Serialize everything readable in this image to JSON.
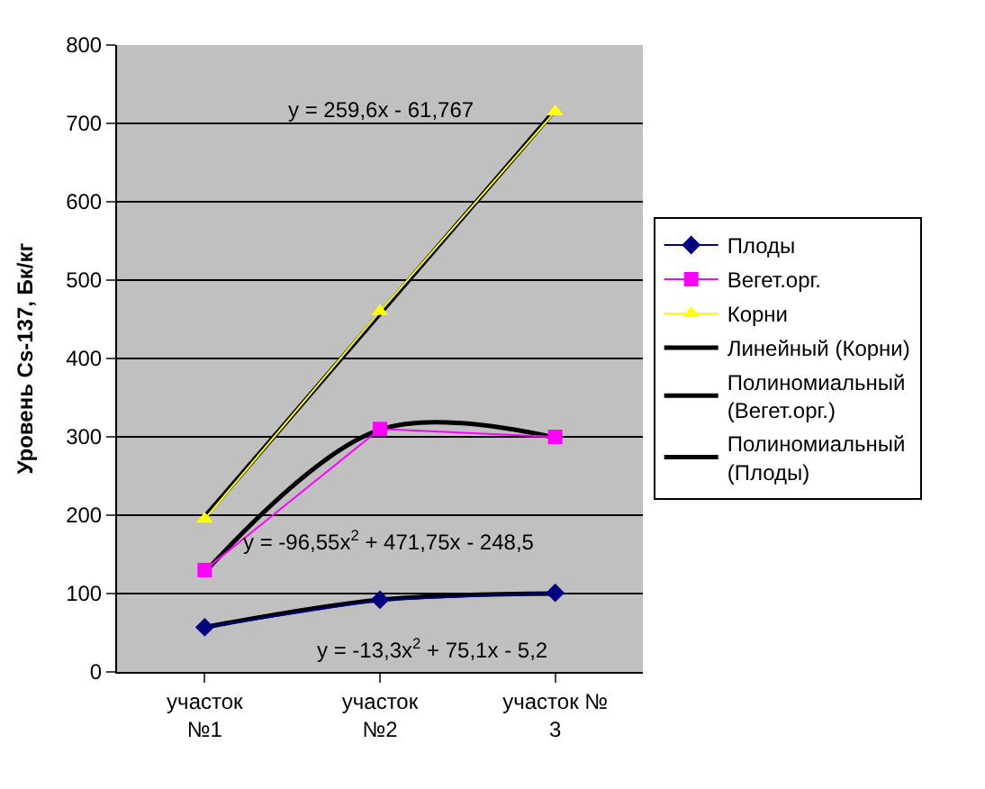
{
  "chart_data": {
    "type": "line",
    "ylabel": "Уровень Cs-137, Бк/кг",
    "categories": [
      "участок №1",
      "участок №2",
      "участок № 3"
    ],
    "series": [
      {
        "name": "Плоды",
        "color": "#000080",
        "marker": "diamond",
        "values": [
          57,
          92,
          101
        ]
      },
      {
        "name": "Вегет.орг.",
        "color": "#ff00ff",
        "marker": "square",
        "values": [
          130,
          310,
          300
        ]
      },
      {
        "name": "Корни",
        "color": "#ffff00",
        "marker": "triangle",
        "values": [
          195,
          460,
          715
        ]
      },
      {
        "name": "Линейный (Корни)",
        "color": "#000000",
        "marker": "none",
        "values": [
          198,
          457,
          717
        ]
      },
      {
        "name": "Полиномиальный (Вегет.орг.)",
        "color": "#000000",
        "marker": "none",
        "values": [
          127,
          309,
          299
        ]
      },
      {
        "name": "Полиномиальный (Плоды)",
        "color": "#000000",
        "marker": "none",
        "values": [
          57,
          92,
          100
        ]
      }
    ],
    "annotations": [
      "y = 259,6x - 61,767",
      "y = -96,55x$^{2}$ + 471,75x - 248,5",
      "y = -13,3x$^{2}$ + 75,1x - 5,2"
    ],
    "ylim": [
      0,
      800
    ],
    "yticks": [
      0,
      100,
      200,
      300,
      400,
      500,
      600,
      700,
      800
    ],
    "grid": "y",
    "legend": "right"
  }
}
